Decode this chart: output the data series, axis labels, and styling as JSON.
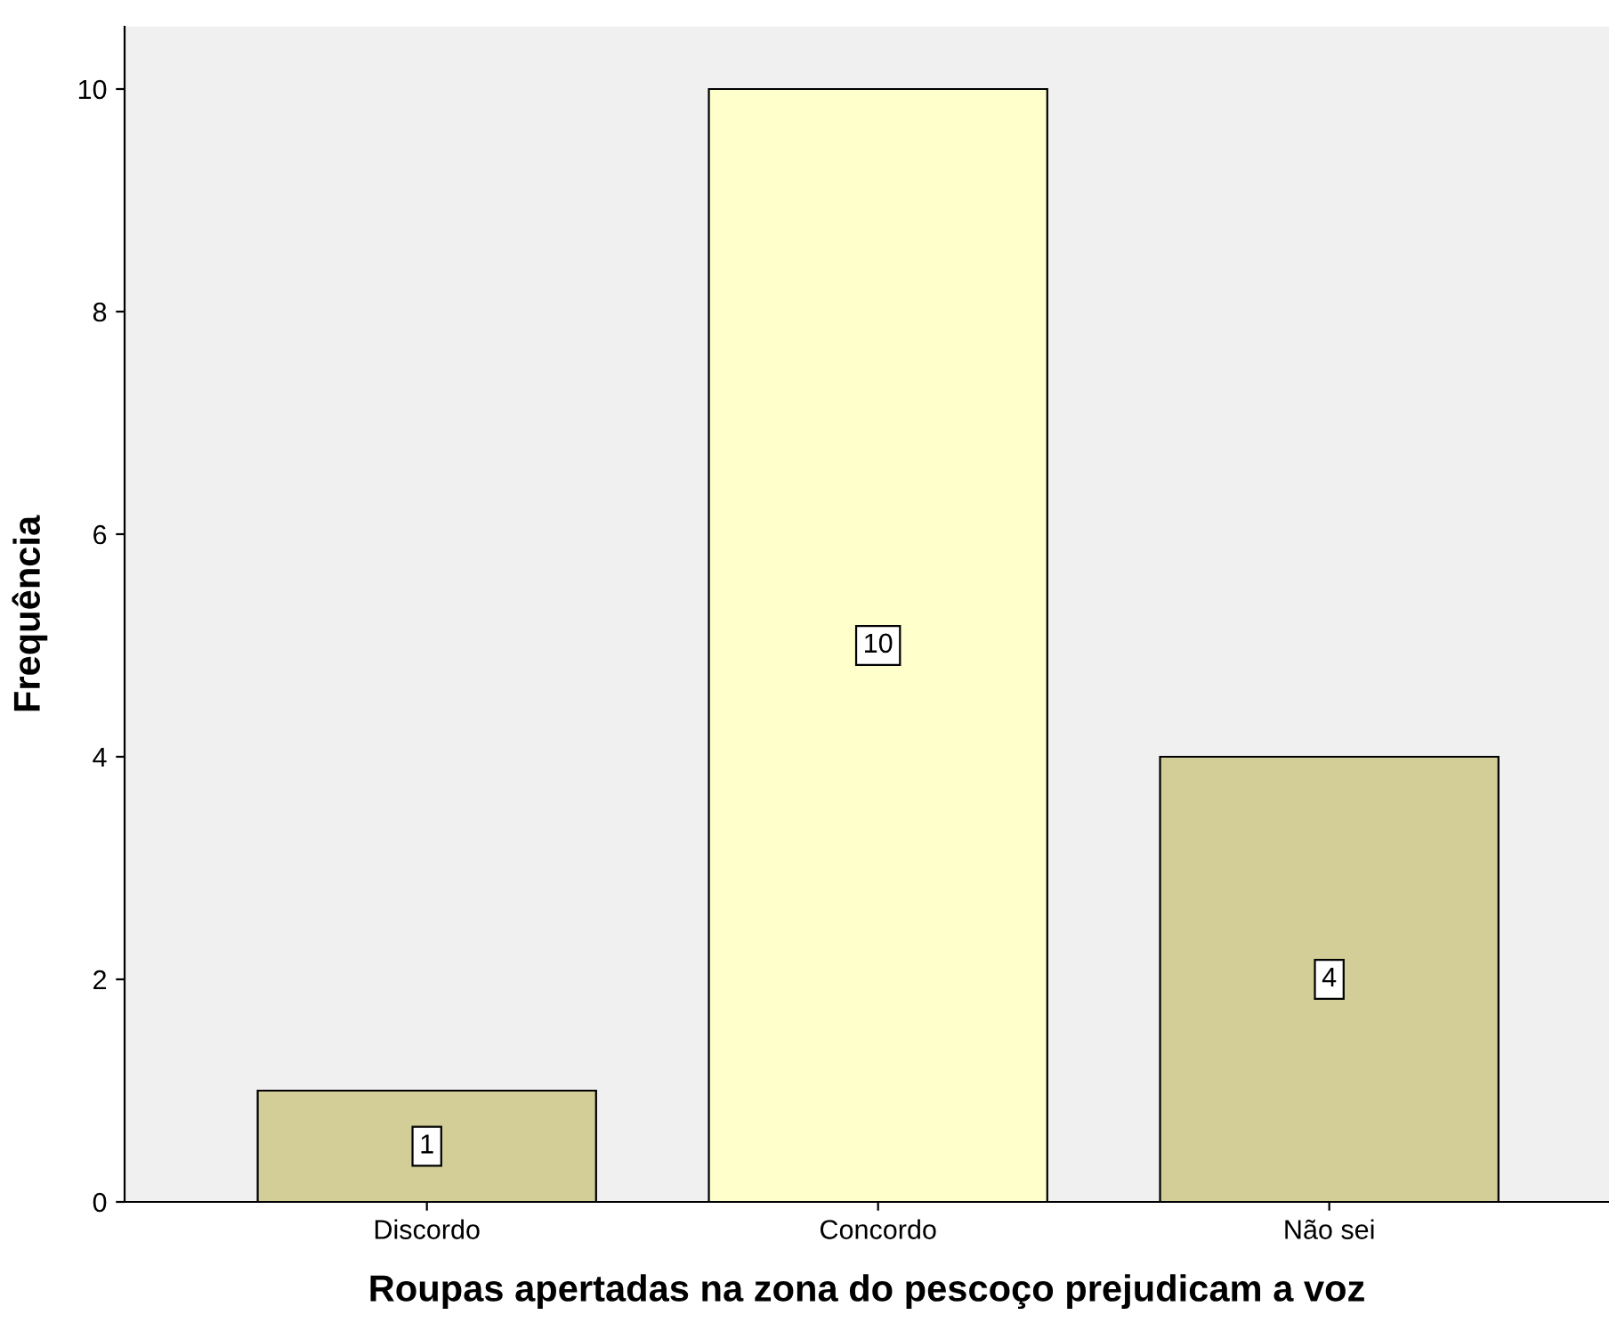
{
  "chart_data": {
    "type": "bar",
    "xlabel": "Roupas apertadas na zona do pescoço prejudicam a voz",
    "ylabel": "Frequência",
    "categories": [
      "Discordo",
      "Concordo",
      "Não sei"
    ],
    "values": [
      1,
      10,
      4
    ],
    "colors": [
      "#d3ce97",
      "#ffffcc",
      "#d3ce97"
    ],
    "ylim": [
      0,
      10.56
    ],
    "yticks": [
      0,
      2,
      4,
      6,
      8,
      10
    ],
    "data_labels": true,
    "grid": false,
    "legend": false
  }
}
